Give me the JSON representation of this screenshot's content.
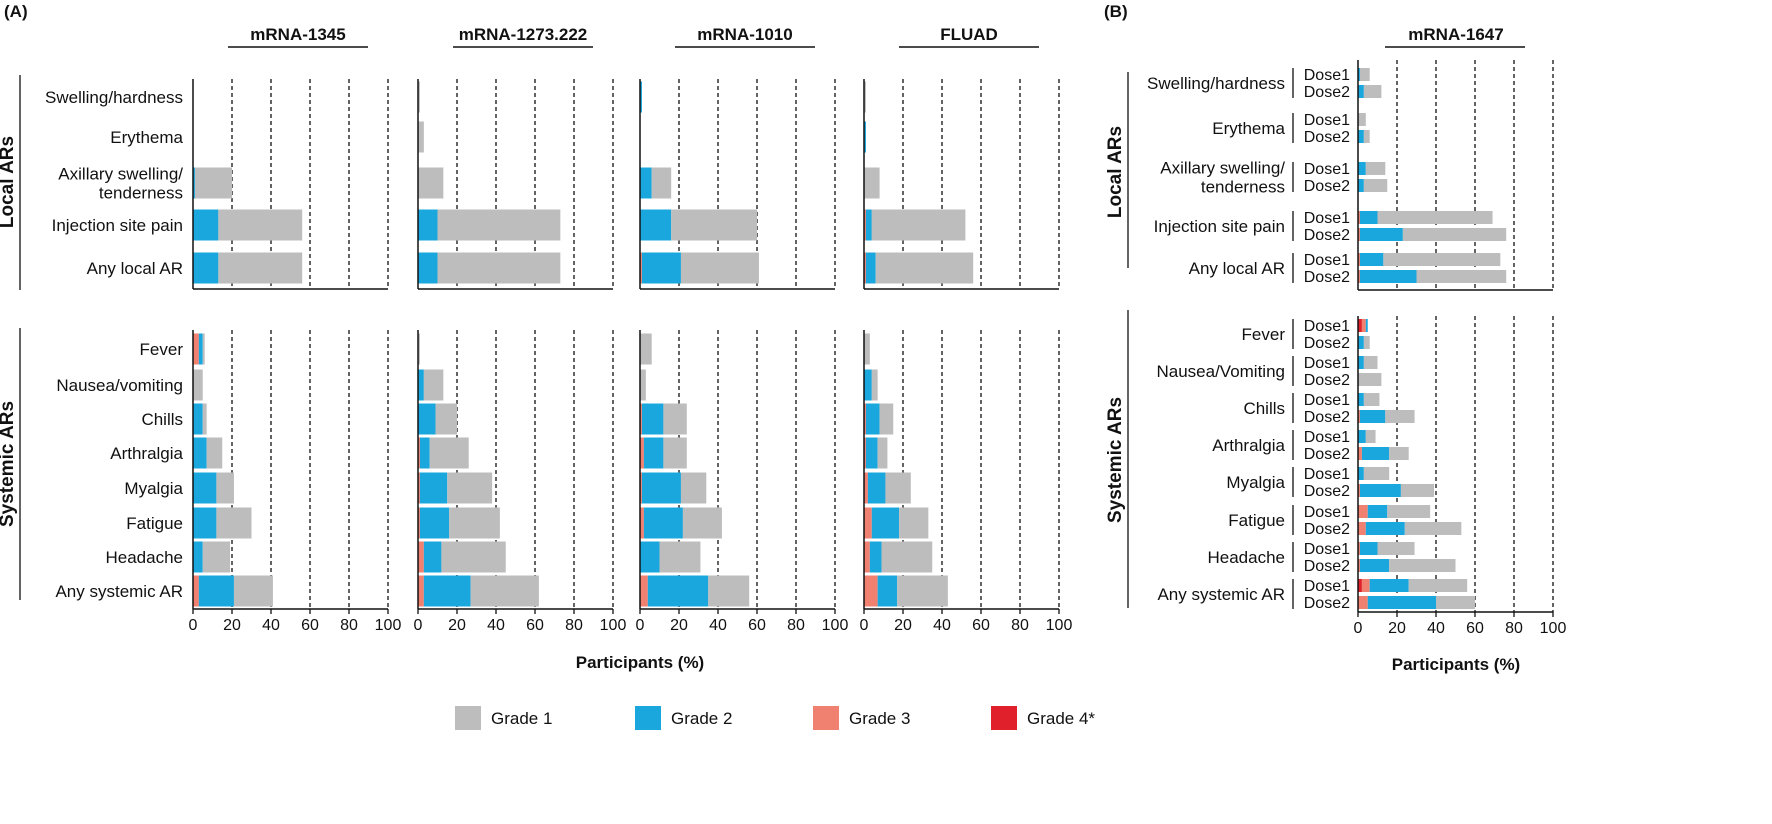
{
  "chart_data": {
    "type": "bar",
    "stacked": true,
    "panel_labels": [
      "(A)",
      "(B)"
    ],
    "section_labels": {
      "local": "Local ARs",
      "systemic": "Systemic ARs"
    },
    "xlabel": "Participants (%)",
    "xlim": [
      0,
      100
    ],
    "xticks": [
      "0",
      "20",
      "40",
      "60",
      "80",
      "100"
    ],
    "grades": [
      {
        "name": "Grade 1",
        "color": "#bdbdbd"
      },
      {
        "name": "Grade 2",
        "color": "#1aa7dd"
      },
      {
        "name": "Grade 3",
        "color": "#f08070"
      },
      {
        "name": "Grade 4*",
        "color": "#e0202a"
      }
    ],
    "local_categories_A": [
      "Swelling/hardness",
      "Erythema",
      "Axillary swelling/\ntenderness",
      "Injection site pain",
      "Any local AR"
    ],
    "systemic_categories_A": [
      "Fever",
      "Nausea/vomiting",
      "Chills",
      "Arthralgia",
      "Myalgia",
      "Fatigue",
      "Headache",
      "Any systemic AR"
    ],
    "panels_A": [
      {
        "title": "mRNA-1345",
        "local": [
          [
            0,
            0,
            0,
            0
          ],
          [
            0,
            0,
            0,
            0
          ],
          [
            19,
            1,
            0,
            0
          ],
          [
            43,
            13,
            0,
            0
          ],
          [
            43,
            13,
            0,
            0
          ]
        ],
        "systemic": [
          [
            1,
            2,
            3,
            0
          ],
          [
            5,
            0,
            0,
            0
          ],
          [
            2,
            5,
            0,
            0
          ],
          [
            8,
            7,
            0,
            0
          ],
          [
            9,
            12,
            0,
            0
          ],
          [
            18,
            12,
            0,
            0
          ],
          [
            14,
            5,
            0,
            0
          ],
          [
            20,
            18,
            3,
            0
          ]
        ]
      },
      {
        "title": "mRNA-1273.222",
        "local": [
          [
            1,
            0,
            0,
            0
          ],
          [
            3,
            0,
            0,
            0
          ],
          [
            13,
            0,
            0,
            0
          ],
          [
            63,
            10,
            0,
            0
          ],
          [
            63,
            10,
            0,
            0
          ]
        ],
        "systemic": [
          [
            1,
            0,
            0,
            0
          ],
          [
            10,
            3,
            0,
            0
          ],
          [
            11,
            9,
            0,
            0
          ],
          [
            20,
            5,
            1,
            0
          ],
          [
            23,
            14,
            1,
            0
          ],
          [
            26,
            15,
            1,
            0
          ],
          [
            33,
            9,
            3,
            0
          ],
          [
            35,
            24,
            3,
            0
          ]
        ]
      },
      {
        "title": "mRNA-1010",
        "local": [
          [
            0,
            1,
            0,
            0
          ],
          [
            0,
            0,
            0,
            0
          ],
          [
            10,
            6,
            0,
            0
          ],
          [
            44,
            16,
            0,
            0
          ],
          [
            40,
            20,
            1,
            0
          ]
        ],
        "systemic": [
          [
            6,
            0,
            0,
            0
          ],
          [
            3,
            0,
            0,
            0
          ],
          [
            12,
            11,
            1,
            0
          ],
          [
            12,
            10,
            2,
            0
          ],
          [
            13,
            20,
            1,
            0
          ],
          [
            20,
            20,
            2,
            0
          ],
          [
            21,
            10,
            0,
            0
          ],
          [
            21,
            31,
            4,
            0
          ]
        ]
      },
      {
        "title": "FLUAD",
        "local": [
          [
            1,
            0,
            0,
            0
          ],
          [
            0,
            1,
            0,
            0
          ],
          [
            8,
            0,
            0,
            0
          ],
          [
            48,
            3,
            1,
            0
          ],
          [
            50,
            5,
            1,
            0
          ]
        ],
        "systemic": [
          [
            3,
            0,
            0,
            0
          ],
          [
            3,
            4,
            0,
            0
          ],
          [
            7,
            7,
            1,
            0
          ],
          [
            5,
            6,
            1,
            0
          ],
          [
            13,
            9,
            2,
            0
          ],
          [
            15,
            14,
            4,
            0
          ],
          [
            26,
            6,
            3,
            0
          ],
          [
            26,
            10,
            7,
            0
          ]
        ]
      }
    ],
    "panel_B": {
      "title": "mRNA-1647",
      "dose_labels": [
        "Dose1",
        "Dose2"
      ],
      "local_categories": [
        "Swelling/hardness",
        "Erythema",
        "Axillary swelling/\ntenderness",
        "Injection site pain",
        "Any local AR"
      ],
      "systemic_categories": [
        "Fever",
        "Nausea/Vomiting",
        "Chills",
        "Arthralgia",
        "Myalgia",
        "Fatigue",
        "Headache",
        "Any systemic AR"
      ],
      "local": [
        [
          [
            5,
            1,
            0,
            0
          ],
          [
            9,
            3,
            0,
            0
          ]
        ],
        [
          [
            4,
            0,
            0,
            0
          ],
          [
            3,
            3,
            0,
            0
          ]
        ],
        [
          [
            10,
            4,
            0,
            0
          ],
          [
            12,
            3,
            0,
            0
          ]
        ],
        [
          [
            59,
            9,
            1,
            0
          ],
          [
            53,
            22,
            1,
            0
          ]
        ],
        [
          [
            60,
            12,
            1,
            0
          ],
          [
            46,
            29,
            1,
            0
          ]
        ]
      ],
      "systemic": [
        [
          [
            0,
            1,
            2,
            2
          ],
          [
            3,
            3,
            0,
            0
          ]
        ],
        [
          [
            7,
            3,
            0,
            0
          ],
          [
            12,
            0,
            0,
            0
          ]
        ],
        [
          [
            8,
            3,
            0,
            0
          ],
          [
            15,
            13,
            1,
            0
          ]
        ],
        [
          [
            5,
            4,
            0,
            0
          ],
          [
            10,
            14,
            2,
            0
          ]
        ],
        [
          [
            13,
            3,
            0,
            0
          ],
          [
            17,
            21,
            1,
            0
          ]
        ],
        [
          [
            22,
            10,
            5,
            0
          ],
          [
            29,
            20,
            4,
            0
          ]
        ],
        [
          [
            19,
            9,
            1,
            0
          ],
          [
            34,
            15,
            1,
            0
          ]
        ],
        [
          [
            30,
            20,
            4,
            2
          ],
          [
            20,
            35,
            5,
            0
          ]
        ]
      ]
    }
  }
}
